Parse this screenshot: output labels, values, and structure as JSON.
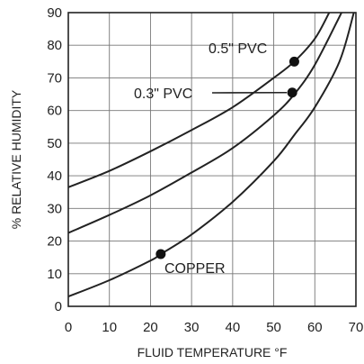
{
  "chart_data": {
    "type": "line",
    "title": "",
    "xlabel": "FLUID TEMPERATURE °F",
    "ylabel": "% RELATIVE HUMIDITY",
    "xlim": [
      0,
      70
    ],
    "ylim": [
      0,
      90
    ],
    "xticks": [
      0,
      10,
      20,
      30,
      40,
      50,
      60,
      70
    ],
    "yticks": [
      0,
      10,
      20,
      30,
      40,
      50,
      60,
      70,
      80,
      90
    ],
    "grid": true,
    "series": [
      {
        "name": "0.5\" PVC",
        "x": [
          0,
          10,
          20,
          30,
          40,
          50,
          55,
          60,
          63.5
        ],
        "y": [
          36.5,
          41.5,
          47.5,
          54,
          61,
          70,
          75,
          82,
          90
        ],
        "marker": {
          "x": 55,
          "y": 75
        }
      },
      {
        "name": "0.3\" PVC",
        "x": [
          0,
          10,
          20,
          30,
          40,
          50,
          55,
          60,
          66.5
        ],
        "y": [
          22.5,
          28,
          34,
          41,
          48.5,
          58.5,
          65,
          74,
          90
        ],
        "marker": {
          "x": 54.5,
          "y": 65.5
        }
      },
      {
        "name": "COPPER",
        "x": [
          0,
          10,
          20,
          22.5,
          30,
          40,
          50,
          55,
          60,
          66,
          69.5
        ],
        "y": [
          3,
          8,
          14,
          16,
          22,
          32,
          44.5,
          52.5,
          61,
          75,
          90
        ],
        "marker": {
          "x": 22.5,
          "y": 16
        }
      }
    ]
  }
}
